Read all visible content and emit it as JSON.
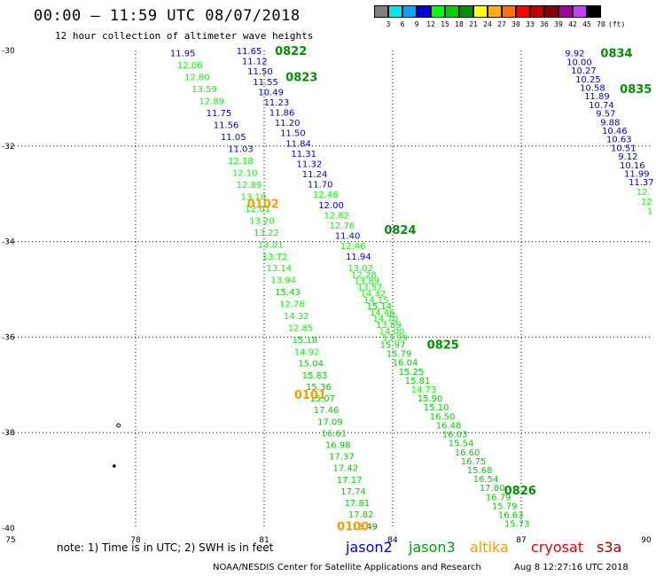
{
  "header": {
    "title": "00:00 – 11:59 UTC 08/07/2018",
    "subtitle": "12 hour collection of altimeter wave heights"
  },
  "colorbar": {
    "labels": [
      "3",
      "6",
      "9",
      "12",
      "15",
      "18",
      "21",
      "24",
      "27",
      "30",
      "33",
      "36",
      "39",
      "42",
      "45",
      "70",
      "(ft)"
    ],
    "colors": [
      "#7f7f7f",
      "#00e8e8",
      "#00a6ff",
      "#0000e0",
      "#00ff00",
      "#00d000",
      "#009000",
      "#ffff00",
      "#ffb000",
      "#ff7000",
      "#ff0000",
      "#c00000",
      "#8a0000",
      "#a000a0",
      "#c040ff",
      "#000000"
    ]
  },
  "map": {
    "lat_labels": [
      "-30",
      "-32",
      "-34",
      "-36",
      "-38",
      "-40"
    ],
    "lon_labels": [
      "75",
      "78",
      "81",
      "84",
      "87",
      "90"
    ],
    "islands": [
      {
        "name": "island-1",
        "lon": 77.6,
        "lat": -37.85
      },
      {
        "name": "island-2",
        "lon": 77.5,
        "lat": -38.7
      }
    ],
    "tracks": [
      {
        "name": "track-a",
        "lon_start": 79.1,
        "lat_start": -30.05,
        "lon_end": 80.45,
        "lat_end": -32.05,
        "values": [
          "11.95",
          "12.06",
          "12.80",
          "13.59",
          "12.89",
          "11.75",
          "11.56",
          "11.05",
          "11.03"
        ],
        "colors": [
          "#0000e0",
          "#00ff00",
          "#00ff00",
          "#00ff00",
          "#00ff00",
          "#0000e0",
          "#0000e0",
          "#0000e0",
          "#0000e0"
        ]
      },
      {
        "name": "track-b",
        "lon_start": 80.45,
        "lat_start": -32.3,
        "lon_end": 81.95,
        "lat_end": -36.05,
        "values": [
          "12.18",
          "12.10",
          "12.89",
          "13.10",
          "12.01",
          "13.20",
          "13.22",
          "13.01",
          "13.72",
          "13.14",
          "13.94",
          "15.43",
          "12.78",
          "14.32",
          "12.85",
          "15.18"
        ],
        "colors": [
          "#00ff00",
          "#00ff00",
          "#00ff00",
          "#00ff00",
          "#00ff00",
          "#00ff00",
          "#00ff00",
          "#00ff00",
          "#00ff00",
          "#00ff00",
          "#00ff00",
          "#00d000",
          "#00ff00",
          "#00ff00",
          "#00ff00",
          "#00d000"
        ]
      },
      {
        "name": "track-c",
        "lon_start": 82.0,
        "lat_start": -36.3,
        "lon_end": 83.35,
        "lat_end": -39.95,
        "values": [
          "14.92",
          "15.04",
          "15.83",
          "15.36",
          "15.07",
          "17.46",
          "17.09",
          "16.61",
          "16.98",
          "17.37",
          "17.42",
          "17.17",
          "17.74",
          "17.81",
          "17.82",
          "18.49"
        ],
        "colors": [
          "#00ff00",
          "#00d000",
          "#00d000",
          "#00d000",
          "#00d000",
          "#00d000",
          "#00d000",
          "#00d000",
          "#00d000",
          "#00d000",
          "#00d000",
          "#00d000",
          "#00d000",
          "#00d000",
          "#00d000",
          "#009000"
        ]
      },
      {
        "name": "track-d",
        "lon_start": 80.65,
        "lat_start": -30.0,
        "lon_end": 83.2,
        "lat_end": -34.3,
        "values": [
          "11.65",
          "11.12",
          "11.50",
          "11.55",
          "10.49",
          "11.23",
          "11.86",
          "11.20",
          "11.50",
          "11.84",
          "11.31",
          "11.32",
          "11.24",
          "11.70",
          "12.46",
          "12.00",
          "12.82",
          "12.76",
          "11.40",
          "12.46",
          "11.94"
        ],
        "colors": [
          "#0000e0",
          "#0000e0",
          "#0000e0",
          "#0000e0",
          "#0000e0",
          "#0000e0",
          "#0000e0",
          "#0000e0",
          "#0000e0",
          "#0000e0",
          "#0000e0",
          "#0000e0",
          "#0000e0",
          "#0000e0",
          "#00ff00",
          "#0000e0",
          "#00ff00",
          "#00ff00",
          "#0000e0",
          "#00ff00",
          "#0000e0"
        ]
      },
      {
        "name": "track-e",
        "lon_start": 83.25,
        "lat_start": -34.55,
        "lon_end": 84.05,
        "lat_end": -36.0,
        "values": [
          "13.02",
          "12.28",
          "13.89",
          "13.57",
          "14.32",
          "14.15",
          "15.14",
          "14.46",
          "14.70",
          "13.89",
          "14.00",
          "13.99"
        ],
        "colors": [
          "#00ff00",
          "#00ff00",
          "#00ff00",
          "#00ff00",
          "#00ff00",
          "#00ff00",
          "#00d000",
          "#00ff00",
          "#00ff00",
          "#00ff00",
          "#00ff00",
          "#00ff00"
        ]
      },
      {
        "name": "track-f",
        "lon_start": 84.0,
        "lat_start": -36.15,
        "lon_end": 86.9,
        "lat_end": -39.9,
        "values": [
          "15.97",
          "15.79",
          "16.04",
          "15.25",
          "15.81",
          "14.73",
          "15.90",
          "15.10",
          "16.50",
          "16.48",
          "16.03",
          "15.54",
          "16.60",
          "16.75",
          "15.68",
          "16.54",
          "17.80",
          "16.79",
          "15.79",
          "16.63",
          "15.73"
        ],
        "colors": [
          "#00d000",
          "#00d000",
          "#00d000",
          "#00d000",
          "#00d000",
          "#00ff00",
          "#00d000",
          "#00d000",
          "#00d000",
          "#00d000",
          "#00d000",
          "#00d000",
          "#00d000",
          "#00d000",
          "#00d000",
          "#00d000",
          "#00d000",
          "#00d000",
          "#00d000",
          "#00d000",
          "#00d000"
        ]
      },
      {
        "name": "track-g",
        "lon_start": 88.25,
        "lat_start": -30.05,
        "lon_end": 89.8,
        "lat_end": -32.75,
        "values": [
          "9.92",
          "10.00",
          "10.27",
          "10.25",
          "10.58",
          "11.89",
          "10.74",
          "9.57",
          "9.88",
          "10.46",
          "10.63",
          "10.51",
          "9.12",
          "10.16",
          "11.99",
          "11.37"
        ],
        "colors": [
          "#0000e0",
          "#0000e0",
          "#0000e0",
          "#0000e0",
          "#0000e0",
          "#0000e0",
          "#0000e0",
          "#0000e0",
          "#0000e0",
          "#0000e0",
          "#0000e0",
          "#0000e0",
          "#0000e0",
          "#0000e0",
          "#0000e0",
          "#0000e0"
        ]
      },
      {
        "name": "track-h",
        "lon_start": 89.85,
        "lat_start": -32.95,
        "lon_end": 90.0,
        "lat_end": -33.35,
        "values": [
          "12.",
          "12",
          "1"
        ],
        "colors": [
          "#00ff00",
          "#00ff00",
          "#00ff00"
        ]
      }
    ],
    "time_labels": [
      {
        "text": "0822",
        "lon": 81.25,
        "lat": -30.0,
        "color": "#009000"
      },
      {
        "text": "0823",
        "lon": 81.5,
        "lat": -30.55,
        "color": "#009000"
      },
      {
        "text": "0824",
        "lon": 83.8,
        "lat": -33.75,
        "color": "#009000"
      },
      {
        "text": "0825",
        "lon": 84.8,
        "lat": -36.15,
        "color": "#009000"
      },
      {
        "text": "0826",
        "lon": 86.6,
        "lat": -39.2,
        "color": "#009000"
      },
      {
        "text": "0834",
        "lon": 88.85,
        "lat": -30.05,
        "color": "#009000"
      },
      {
        "text": "0835",
        "lon": 89.3,
        "lat": -30.8,
        "color": "#009000"
      },
      {
        "text": "0102",
        "lon": 80.6,
        "lat": -33.2,
        "color": "#ff9a00"
      },
      {
        "text": "0101",
        "lon": 81.7,
        "lat": -37.2,
        "color": "#ff9a00"
      },
      {
        "text": "0100",
        "lon": 82.7,
        "lat": -39.95,
        "color": "#ff9a00"
      }
    ]
  },
  "notes": {
    "note_text": "note:  1) Time is in UTC;  2) SWH is in feet"
  },
  "satellite_legend": [
    {
      "label": "jason2",
      "color": "#0000e0"
    },
    {
      "label": "jason3",
      "color": "#00a000"
    },
    {
      "label": "altika",
      "color": "#ff9a00"
    },
    {
      "label": "cryosat",
      "color": "#e00000"
    },
    {
      "label": "s3a",
      "color": "#a00000"
    }
  ],
  "footer": {
    "center": "NOAA/NESDIS Center for Satellite Applications and Research",
    "timestamp": "Aug  8 12:27:16 UTC 2018"
  }
}
